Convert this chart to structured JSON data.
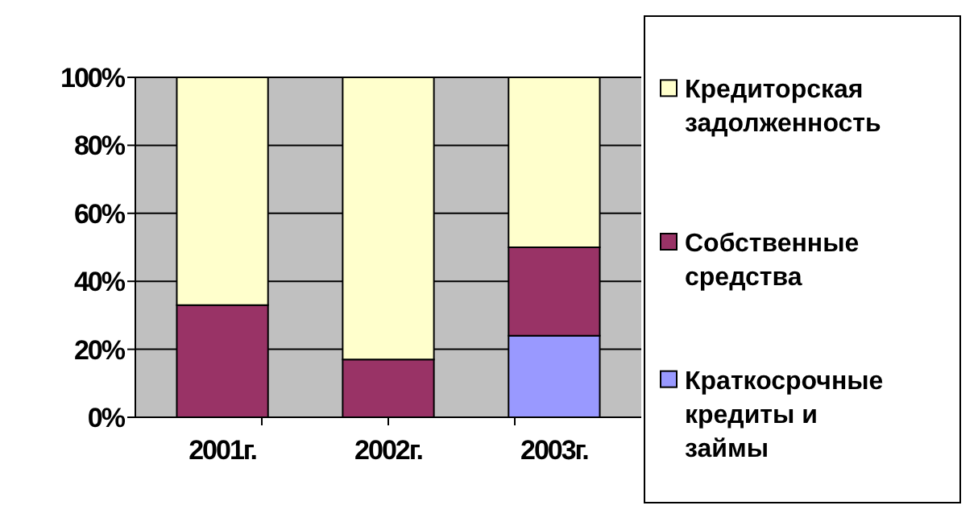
{
  "chart_data": {
    "type": "bar",
    "stacked": true,
    "categories": [
      "2001г.",
      "2002г.",
      "2003г."
    ],
    "series": [
      {
        "name": "Краткосрочные кредиты и займы",
        "color": "#9999ff",
        "values": [
          0,
          0,
          24
        ]
      },
      {
        "name": "Собственные средства",
        "color": "#993366",
        "values": [
          33,
          17,
          26
        ]
      },
      {
        "name": "Кредиторская задолженность",
        "color": "#ffffcc",
        "values": [
          67,
          83,
          50
        ]
      }
    ],
    "ylim": [
      0,
      100
    ],
    "yticks": [
      {
        "value": 0,
        "label": "0%"
      },
      {
        "value": 20,
        "label": "20%"
      },
      {
        "value": 40,
        "label": "40%"
      },
      {
        "value": 60,
        "label": "60%"
      },
      {
        "value": 80,
        "label": "80%"
      },
      {
        "value": 100,
        "label": "100%"
      }
    ],
    "grid": "y",
    "legend": "right"
  }
}
